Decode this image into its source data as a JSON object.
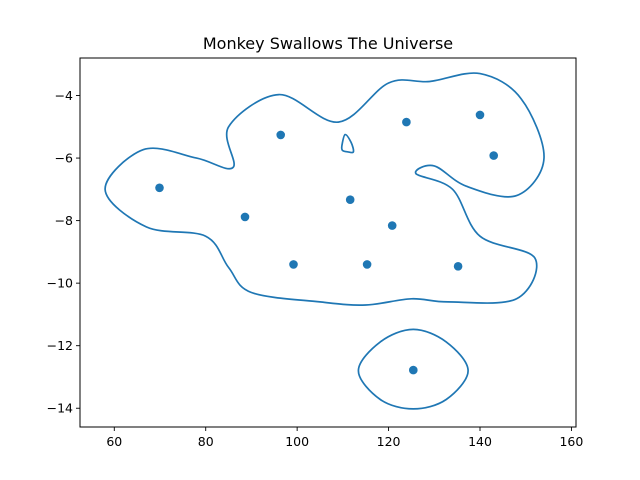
{
  "chart_data": {
    "type": "scatter",
    "title": "Monkey Swallows The Universe",
    "xlabel": "",
    "ylabel": "",
    "xlim": [
      52.5,
      161.0
    ],
    "ylim": [
      -14.6,
      -2.8
    ],
    "xticks": [
      60,
      80,
      100,
      120,
      140,
      160
    ],
    "yticks": [
      -4,
      -6,
      -8,
      -10,
      -12,
      -14
    ],
    "xtick_labels": [
      "60",
      "80",
      "100",
      "120",
      "140",
      "160"
    ],
    "ytick_labels": [
      "−4",
      "−6",
      "−8",
      "−10",
      "−12",
      "−14"
    ],
    "grid": false,
    "color": "#1f77b4",
    "points": [
      {
        "x": 69.9,
        "y": -6.95
      },
      {
        "x": 88.6,
        "y": -7.88
      },
      {
        "x": 96.4,
        "y": -5.26
      },
      {
        "x": 99.2,
        "y": -9.4
      },
      {
        "x": 111.6,
        "y": -7.33
      },
      {
        "x": 115.3,
        "y": -9.4
      },
      {
        "x": 120.8,
        "y": -8.16
      },
      {
        "x": 123.9,
        "y": -4.85
      },
      {
        "x": 135.2,
        "y": -9.46
      },
      {
        "x": 140.0,
        "y": -4.62
      },
      {
        "x": 143.0,
        "y": -5.92
      },
      {
        "x": 125.4,
        "y": -12.78
      }
    ],
    "contours": [
      [
        [
          66.4,
          -5.73
        ],
        [
          78.0,
          -6.0
        ],
        [
          86.0,
          -6.3
        ],
        [
          85.0,
          -5.0
        ],
        [
          96.0,
          -3.97
        ],
        [
          109.0,
          -4.85
        ],
        [
          120.0,
          -3.6
        ],
        [
          129.0,
          -3.55
        ],
        [
          140.0,
          -3.3
        ],
        [
          149.0,
          -4.1
        ],
        [
          154.0,
          -6.0
        ],
        [
          148.0,
          -7.2
        ],
        [
          137.0,
          -6.9
        ],
        [
          130.0,
          -6.25
        ],
        [
          126.0,
          -6.5
        ],
        [
          134.0,
          -7.0
        ],
        [
          140.0,
          -8.5
        ],
        [
          152.0,
          -9.2
        ],
        [
          148.0,
          -10.5
        ],
        [
          133.0,
          -10.6
        ],
        [
          125.0,
          -10.5
        ],
        [
          115.0,
          -10.7
        ],
        [
          105.0,
          -10.6
        ],
        [
          90.0,
          -10.3
        ],
        [
          85.0,
          -9.5
        ],
        [
          80.0,
          -8.5
        ],
        [
          67.0,
          -8.2
        ],
        [
          58.0,
          -7.0
        ]
      ],
      [
        [
          109.8,
          -5.6
        ],
        [
          110.5,
          -5.25
        ],
        [
          111.8,
          -5.5
        ],
        [
          112.3,
          -5.8
        ],
        [
          111.0,
          -5.8
        ],
        [
          109.9,
          -5.75
        ]
      ],
      [
        [
          125.4,
          -11.48
        ],
        [
          132.6,
          -11.88
        ],
        [
          137.4,
          -12.8
        ],
        [
          132.6,
          -13.72
        ],
        [
          125.4,
          -14.02
        ],
        [
          118.2,
          -13.72
        ],
        [
          113.4,
          -12.8
        ],
        [
          118.2,
          -11.88
        ]
      ]
    ]
  }
}
